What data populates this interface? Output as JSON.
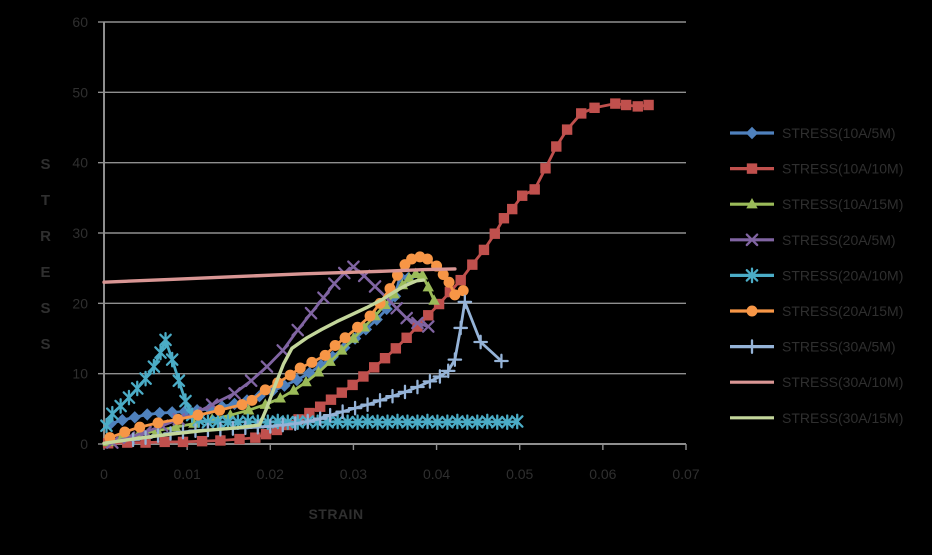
{
  "page": {
    "background": "#000000"
  },
  "chart_data": {
    "type": "line",
    "title": "",
    "xlabel": "STRAIN",
    "ylabel": "STRESS",
    "xlim": [
      0,
      0.07
    ],
    "ylim": [
      0,
      60
    ],
    "xticks": [
      0,
      0.01,
      0.02,
      0.03,
      0.04,
      0.05,
      0.06,
      0.07
    ],
    "xtick_labels": [
      "0",
      "0.01",
      "0.02",
      "0.03",
      "0.04",
      "0.05",
      "0.06",
      "0.07"
    ],
    "yticks": [
      0,
      10,
      20,
      30,
      40,
      50,
      60
    ],
    "ytick_labels": [
      "0",
      "10",
      "20",
      "30",
      "40",
      "50",
      "60"
    ],
    "grid": "horizontal",
    "legend_position": "right-outside",
    "axis_color": "#8f8f8f",
    "text_color": "#2f2f2f",
    "series": [
      {
        "name": "STRESS(10A/5M)",
        "color": "#4F81BD",
        "marker": "diamond",
        "points": [
          [
            0.0008,
            2.9
          ],
          [
            0.0022,
            3.4
          ],
          [
            0.0037,
            3.8
          ],
          [
            0.0052,
            4.2
          ],
          [
            0.0067,
            4.4
          ],
          [
            0.0082,
            4.5
          ],
          [
            0.0097,
            4.6
          ],
          [
            0.0112,
            4.8
          ],
          [
            0.0127,
            5.0
          ],
          [
            0.0142,
            5.3
          ],
          [
            0.0157,
            5.7
          ],
          [
            0.0172,
            6.2
          ],
          [
            0.0187,
            6.8
          ],
          [
            0.0202,
            7.5
          ],
          [
            0.0217,
            8.3
          ],
          [
            0.0232,
            9.1
          ],
          [
            0.0247,
            10.1
          ],
          [
            0.0261,
            11.2
          ],
          [
            0.0275,
            12.4
          ],
          [
            0.0289,
            13.7
          ],
          [
            0.0302,
            15.0
          ],
          [
            0.0315,
            16.3
          ],
          [
            0.0328,
            17.7
          ],
          [
            0.034,
            19.2
          ],
          [
            0.035,
            21.0
          ],
          [
            0.0356,
            23.8
          ],
          [
            0.0366,
            23.6
          ]
        ]
      },
      {
        "name": "STRESS(10A/10M)",
        "color": "#C0504D",
        "marker": "square",
        "points": [
          [
            0.0005,
            0.1
          ],
          [
            0.0028,
            0.2
          ],
          [
            0.005,
            0.2
          ],
          [
            0.0073,
            0.3
          ],
          [
            0.0095,
            0.3
          ],
          [
            0.0118,
            0.4
          ],
          [
            0.014,
            0.5
          ],
          [
            0.0163,
            0.7
          ],
          [
            0.0182,
            0.9
          ],
          [
            0.0195,
            1.4
          ],
          [
            0.0208,
            2.0
          ],
          [
            0.0221,
            2.7
          ],
          [
            0.0234,
            3.5
          ],
          [
            0.0247,
            4.4
          ],
          [
            0.026,
            5.3
          ],
          [
            0.0273,
            6.3
          ],
          [
            0.0286,
            7.3
          ],
          [
            0.0299,
            8.4
          ],
          [
            0.0312,
            9.6
          ],
          [
            0.0325,
            10.9
          ],
          [
            0.0338,
            12.2
          ],
          [
            0.0351,
            13.6
          ],
          [
            0.0364,
            15.1
          ],
          [
            0.0377,
            16.7
          ],
          [
            0.039,
            18.3
          ],
          [
            0.0403,
            19.9
          ],
          [
            0.0416,
            21.6
          ],
          [
            0.0429,
            23.3
          ],
          [
            0.0443,
            25.5
          ],
          [
            0.0457,
            27.6
          ],
          [
            0.047,
            29.9
          ],
          [
            0.0481,
            32.1
          ],
          [
            0.0491,
            33.4
          ],
          [
            0.0503,
            35.3
          ],
          [
            0.0518,
            36.2
          ],
          [
            0.0531,
            39.2
          ],
          [
            0.0544,
            42.3
          ],
          [
            0.0557,
            44.7
          ],
          [
            0.0574,
            47.0
          ],
          [
            0.059,
            47.8
          ],
          [
            0.0615,
            48.4
          ],
          [
            0.0628,
            48.2
          ],
          [
            0.0642,
            48.0
          ],
          [
            0.0655,
            48.2
          ]
        ]
      },
      {
        "name": "STRESS(10A/15M)",
        "color": "#9BBB59",
        "marker": "triangle",
        "points": [
          [
            0.0005,
            0.3
          ],
          [
            0.002,
            0.8
          ],
          [
            0.0042,
            1.4
          ],
          [
            0.0064,
            1.9
          ],
          [
            0.0086,
            2.4
          ],
          [
            0.0108,
            2.9
          ],
          [
            0.013,
            3.5
          ],
          [
            0.0152,
            4.1
          ],
          [
            0.0174,
            4.8
          ],
          [
            0.0194,
            5.6
          ],
          [
            0.0212,
            6.5
          ],
          [
            0.0228,
            7.6
          ],
          [
            0.0243,
            8.8
          ],
          [
            0.0258,
            10.2
          ],
          [
            0.0272,
            11.7
          ],
          [
            0.0286,
            13.3
          ],
          [
            0.03,
            15.0
          ],
          [
            0.0313,
            16.6
          ],
          [
            0.0326,
            18.2
          ],
          [
            0.0338,
            19.8
          ],
          [
            0.0349,
            21.3
          ],
          [
            0.0359,
            22.6
          ],
          [
            0.0367,
            23.6
          ],
          [
            0.0375,
            24.2
          ],
          [
            0.0383,
            24.0
          ],
          [
            0.039,
            22.3
          ],
          [
            0.0397,
            20.4
          ]
        ]
      },
      {
        "name": "STRESS(20A/5M)",
        "color": "#8064A2",
        "marker": "x",
        "points": [
          [
            0.001,
            0.2
          ],
          [
            0.003,
            0.9
          ],
          [
            0.005,
            1.7
          ],
          [
            0.007,
            2.6
          ],
          [
            0.009,
            3.5
          ],
          [
            0.011,
            4.4
          ],
          [
            0.013,
            5.6
          ],
          [
            0.0157,
            7.2
          ],
          [
            0.0177,
            9.0
          ],
          [
            0.0196,
            11.0
          ],
          [
            0.0215,
            13.3
          ],
          [
            0.0233,
            16.2
          ],
          [
            0.0249,
            18.6
          ],
          [
            0.0264,
            20.8
          ],
          [
            0.0277,
            22.8
          ],
          [
            0.0289,
            24.3
          ],
          [
            0.03,
            25.2
          ],
          [
            0.0313,
            23.9
          ],
          [
            0.0326,
            22.4
          ],
          [
            0.0339,
            20.9
          ],
          [
            0.0352,
            19.3
          ],
          [
            0.0364,
            17.9
          ],
          [
            0.0377,
            17.2
          ],
          [
            0.039,
            16.7
          ]
        ]
      },
      {
        "name": "STRESS(20A/10M)",
        "color": "#4BACC6",
        "marker": "star",
        "points": [
          [
            0.0003,
            2.6
          ],
          [
            0.001,
            4.3
          ],
          [
            0.002,
            5.4
          ],
          [
            0.003,
            6.6
          ],
          [
            0.004,
            7.9
          ],
          [
            0.005,
            9.3
          ],
          [
            0.006,
            11.0
          ],
          [
            0.0068,
            13.0
          ],
          [
            0.0074,
            14.8
          ],
          [
            0.0082,
            12.0
          ],
          [
            0.009,
            9.0
          ],
          [
            0.0098,
            6.1
          ],
          [
            0.0106,
            4.1
          ],
          [
            0.0114,
            3.4
          ],
          [
            0.0125,
            3.1
          ],
          [
            0.0137,
            3.2
          ],
          [
            0.0149,
            3.1
          ],
          [
            0.0161,
            3.1
          ],
          [
            0.0173,
            3.2
          ],
          [
            0.0185,
            3.1
          ],
          [
            0.0197,
            3.1
          ],
          [
            0.0209,
            3.2
          ],
          [
            0.0221,
            3.1
          ],
          [
            0.0233,
            3.1
          ],
          [
            0.0245,
            3.2
          ],
          [
            0.0257,
            3.1
          ],
          [
            0.0269,
            3.1
          ],
          [
            0.0281,
            3.2
          ],
          [
            0.0293,
            3.1
          ],
          [
            0.0305,
            3.1
          ],
          [
            0.0317,
            3.2
          ],
          [
            0.0329,
            3.1
          ],
          [
            0.0341,
            3.1
          ],
          [
            0.0353,
            3.2
          ],
          [
            0.0365,
            3.1
          ],
          [
            0.0377,
            3.1
          ],
          [
            0.0389,
            3.2
          ],
          [
            0.0401,
            3.1
          ],
          [
            0.0413,
            3.1
          ],
          [
            0.0425,
            3.2
          ],
          [
            0.0437,
            3.1
          ],
          [
            0.0449,
            3.1
          ],
          [
            0.0461,
            3.2
          ],
          [
            0.0473,
            3.1
          ],
          [
            0.0485,
            3.1
          ],
          [
            0.0497,
            3.2
          ]
        ]
      },
      {
        "name": "STRESS(20A/15M)",
        "color": "#F79646",
        "marker": "circle",
        "points": [
          [
            0.0007,
            0.9
          ],
          [
            0.0025,
            1.7
          ],
          [
            0.0043,
            2.4
          ],
          [
            0.0065,
            3.0
          ],
          [
            0.0089,
            3.5
          ],
          [
            0.0113,
            4.1
          ],
          [
            0.0139,
            4.8
          ],
          [
            0.0166,
            5.6
          ],
          [
            0.0178,
            6.2
          ],
          [
            0.0194,
            7.7
          ],
          [
            0.0209,
            8.7
          ],
          [
            0.0224,
            9.8
          ],
          [
            0.0236,
            10.8
          ],
          [
            0.025,
            11.6
          ],
          [
            0.0266,
            12.6
          ],
          [
            0.0278,
            14.0
          ],
          [
            0.029,
            15.1
          ],
          [
            0.0305,
            16.6
          ],
          [
            0.032,
            18.2
          ],
          [
            0.0332,
            20.0
          ],
          [
            0.0344,
            22.1
          ],
          [
            0.0353,
            24.0
          ],
          [
            0.0362,
            25.5
          ],
          [
            0.037,
            26.3
          ],
          [
            0.038,
            26.6
          ],
          [
            0.0389,
            26.3
          ],
          [
            0.04,
            25.3
          ],
          [
            0.0408,
            24.1
          ],
          [
            0.0415,
            23.0
          ],
          [
            0.0422,
            21.2
          ],
          [
            0.0432,
            21.8
          ]
        ]
      },
      {
        "name": "STRESS(30A/5M)",
        "color": "#95B3D7",
        "marker": "plus",
        "points": [
          [
            0.0035,
            0.6
          ],
          [
            0.005,
            0.9
          ],
          [
            0.0065,
            1.2
          ],
          [
            0.008,
            1.5
          ],
          [
            0.0095,
            1.7
          ],
          [
            0.011,
            1.9
          ],
          [
            0.0125,
            2.0
          ],
          [
            0.014,
            2.1
          ],
          [
            0.0155,
            2.2
          ],
          [
            0.017,
            2.3
          ],
          [
            0.0185,
            2.4
          ],
          [
            0.02,
            2.5
          ],
          [
            0.0215,
            2.7
          ],
          [
            0.023,
            2.9
          ],
          [
            0.0245,
            3.2
          ],
          [
            0.026,
            3.6
          ],
          [
            0.0272,
            4.1
          ],
          [
            0.0287,
            4.6
          ],
          [
            0.0302,
            5.1
          ],
          [
            0.0317,
            5.6
          ],
          [
            0.0332,
            6.2
          ],
          [
            0.0347,
            6.8
          ],
          [
            0.0362,
            7.4
          ],
          [
            0.0377,
            8.1
          ],
          [
            0.0392,
            8.9
          ],
          [
            0.0404,
            9.6
          ],
          [
            0.0414,
            10.4
          ],
          [
            0.0422,
            12.0
          ],
          [
            0.0429,
            16.5
          ],
          [
            0.0434,
            20.2
          ],
          [
            0.0453,
            14.5
          ],
          [
            0.0478,
            11.8
          ]
        ]
      },
      {
        "name": "STRESS(30A/10M)",
        "color": "#D99694",
        "marker": "none",
        "points": [
          [
            0,
            23.0
          ],
          [
            0.008,
            23.4
          ],
          [
            0.016,
            23.8
          ],
          [
            0.024,
            24.2
          ],
          [
            0.032,
            24.5
          ],
          [
            0.0387,
            24.8
          ],
          [
            0.0422,
            24.9
          ]
        ]
      },
      {
        "name": "STRESS(30A/15M)",
        "color": "#C3D69B",
        "marker": "none",
        "points": [
          [
            0,
            0.1
          ],
          [
            0.004,
            0.8
          ],
          [
            0.008,
            1.4
          ],
          [
            0.012,
            1.9
          ],
          [
            0.016,
            2.3
          ],
          [
            0.0187,
            2.7
          ],
          [
            0.0196,
            5.2
          ],
          [
            0.0206,
            8.4
          ],
          [
            0.0216,
            11.4
          ],
          [
            0.0226,
            13.6
          ],
          [
            0.0244,
            15.1
          ],
          [
            0.0262,
            16.3
          ],
          [
            0.028,
            17.4
          ],
          [
            0.0298,
            18.4
          ],
          [
            0.0316,
            19.4
          ],
          [
            0.0334,
            20.5
          ],
          [
            0.035,
            21.7
          ],
          [
            0.0364,
            22.6
          ],
          [
            0.0376,
            23.2
          ],
          [
            0.0384,
            23.3
          ]
        ]
      }
    ]
  }
}
